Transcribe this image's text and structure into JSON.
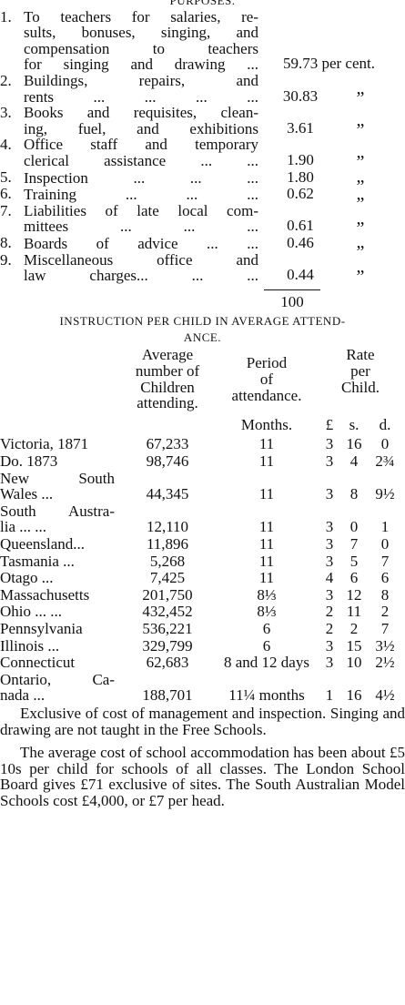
{
  "purposes": {
    "heading": "PURPOSES.",
    "items": [
      {
        "number": "1.",
        "lines": [
          "To teachers for salaries, re-",
          "sults, bonuses, singing, and",
          "compensation to teachers",
          "for singing and drawing ..."
        ],
        "value": "59.73 per cent."
      },
      {
        "number": "2.",
        "lines": [
          "Buildings, repairs, and",
          "rents ... ... ... ..."
        ],
        "value": "30.83",
        "ditto": "„"
      },
      {
        "number": "3.",
        "lines": [
          "Books and requisites, clean-",
          "ing, fuel, and exhibitions"
        ],
        "value": "3.61",
        "ditto": "„"
      },
      {
        "number": "4.",
        "lines": [
          "Office staff and temporary",
          "clerical assistance ... ..."
        ],
        "value": "1.90",
        "ditto": "„"
      },
      {
        "number": "5.",
        "lines": [
          "Inspection ... ... ..."
        ],
        "value": "1.80",
        "ditto": "„"
      },
      {
        "number": "6.",
        "lines": [
          "Training ... ... ..."
        ],
        "value": "0.62",
        "ditto": "„"
      },
      {
        "number": "7.",
        "lines": [
          "Liabilities of late local com-",
          "mittees ... ... ..."
        ],
        "value": "0.61",
        "ditto": "„"
      },
      {
        "number": "8.",
        "lines": [
          "Boards of advice ... ..."
        ],
        "value": "0.46",
        "ditto": "„"
      },
      {
        "number": "9.",
        "lines": [
          "Miscellaneous office and",
          "law charges... ... ..."
        ],
        "value": "0.44",
        "ditto": "„"
      }
    ],
    "total": "100"
  },
  "instruction": {
    "heading": [
      "INSTRUCTION PER CHILD IN AVERAGE ATTEND-",
      "ANCE."
    ],
    "columns": [
      [
        "Average",
        "number of",
        "Children",
        "attending."
      ],
      [
        "Period",
        "of",
        "attendance."
      ],
      [
        "Rate",
        "per",
        "Child."
      ]
    ],
    "units": [
      "Months.",
      "£",
      "s.",
      "d."
    ],
    "rows": [
      {
        "place": [
          "Victoria, 1871"
        ],
        "attending": "67,233",
        "period": "11",
        "rate": [
          "3",
          "16",
          "0"
        ]
      },
      {
        "place": [
          "Do. 1873"
        ],
        "attending": "98,746",
        "period": "11",
        "rate": [
          "3",
          "4",
          "2¾"
        ]
      },
      {
        "place": [
          "New South",
          "Wales ..."
        ],
        "attending": "44,345",
        "period": "11",
        "rate": [
          "3",
          "8",
          "9½"
        ]
      },
      {
        "place": [
          "South Austra-",
          "lia ... ..."
        ],
        "attending": "12,110",
        "period": "11",
        "rate": [
          "3",
          "0",
          "1"
        ]
      },
      {
        "place": [
          "Queensland..."
        ],
        "attending": "11,896",
        "period": "11",
        "rate": [
          "3",
          "7",
          "0"
        ]
      },
      {
        "place": [
          "Tasmania ..."
        ],
        "attending": "5,268",
        "period": "11",
        "rate": [
          "3",
          "5",
          "7"
        ]
      },
      {
        "place": [
          "Otago ..."
        ],
        "attending": "7,425",
        "period": "11",
        "rate": [
          "4",
          "6",
          "6"
        ]
      },
      {
        "place": [
          "Massachusetts"
        ],
        "attending": "201,750",
        "period": "8⅓",
        "rate": [
          "3",
          "12",
          "8"
        ]
      },
      {
        "place": [
          "Ohio ... ..."
        ],
        "attending": "432,452",
        "period": "8⅓",
        "rate": [
          "2",
          "11",
          "2"
        ]
      },
      {
        "place": [
          "Pennsylvania"
        ],
        "attending": "536,221",
        "period": "6",
        "rate": [
          "2",
          "2",
          "7"
        ]
      },
      {
        "place": [
          "Illinois ..."
        ],
        "attending": "329,799",
        "period": "6",
        "rate": [
          "3",
          "15",
          "3½"
        ]
      },
      {
        "place": [
          "Connecticut"
        ],
        "attending": "62,683",
        "period": "8 and 12 days",
        "rate": [
          "3",
          "10",
          "2½"
        ]
      },
      {
        "place": [
          "Ontario, Ca-",
          "nada ..."
        ],
        "attending": "188,701",
        "period": "11¼ months",
        "rate": [
          "1",
          "16",
          "4½"
        ]
      }
    ]
  },
  "paragraphs": [
    "Exclusive of cost of management and inspection. Singing and drawing are not taught in the Free Schools.",
    "The average cost of school accommodation has been about £5 10s per child for schools of all classes. The London School Board gives £71 exclusive of sites. The South Australian Model Schools cost £4,000, or £7 per head."
  ]
}
